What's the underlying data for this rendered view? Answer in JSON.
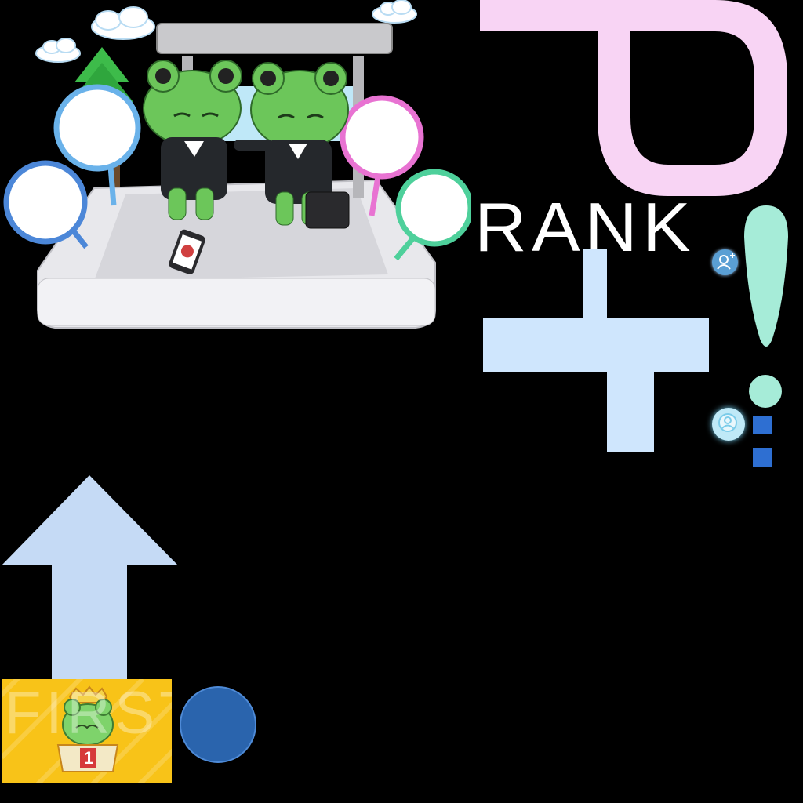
{
  "sprites": {
    "rank_label": "RANK",
    "first_label": "FIRST",
    "first_place_number": "1"
  },
  "colors": {
    "background": "#000000",
    "pink_letter": "#f8d4f4",
    "light_blue": "#cfe6fd",
    "mint": "#a6ecd8",
    "arrow_blue": "#c5daf5",
    "badge_yellow": "#f8c318",
    "circle_blue": "#2a64ad",
    "square_blue": "#2e6fd2",
    "frog_green": "#6cc65a"
  },
  "icons": [
    "add-user-icon",
    "search-user-icon",
    "up-arrow-icon",
    "exclamation-icon",
    "plus-icon"
  ]
}
